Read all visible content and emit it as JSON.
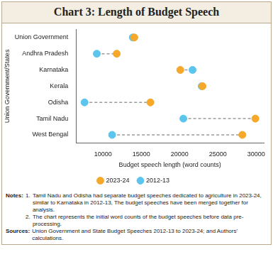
{
  "chart_data": {
    "type": "dumbbell",
    "title": "Chart 3: Length of Budget Speech",
    "x_label": "Budget speech length (word counts)",
    "y_label": "Union Government/States",
    "orientation": "horizontal",
    "categories": [
      "Union Government",
      "Andhra Pradesh",
      "Karnataka",
      "Kerala",
      "Odisha",
      "Tamil Nadu",
      "West Bengal"
    ],
    "series": [
      {
        "name": "2012-13",
        "color": "#5bc5ee",
        "marker": "circle",
        "values": [
          13900,
          9200,
          21700,
          22900,
          7600,
          20500,
          11200
        ]
      },
      {
        "name": "2023-24",
        "color": "#f5a82a",
        "marker": "circle",
        "values": [
          14100,
          11800,
          20100,
          23000,
          16200,
          29900,
          28200
        ]
      }
    ],
    "line_style": "dashed",
    "xlim": [
      6500,
      31000
    ],
    "xticks": [
      10000,
      15000,
      20000,
      25000,
      30000
    ],
    "grid": false,
    "legend": "bottom",
    "notes": {
      "label": "Notes:",
      "items": [
        {
          "number": "1.",
          "text": "Tamil Nadu and Odisha had separate budget speeches dedicated to agriculture in 2023-24, similar to Karnataka in 2012-13, The budget speeches have been merged together for analysis."
        },
        {
          "number": "2.",
          "text": "The chart represents the initial word counts of the budget speeches before data pre-processing."
        }
      ]
    },
    "sources": {
      "label": "Sources:",
      "text": "Union Government and State Budget Speeches 2012-13 to 2023-24; and Authors' calculations."
    }
  }
}
